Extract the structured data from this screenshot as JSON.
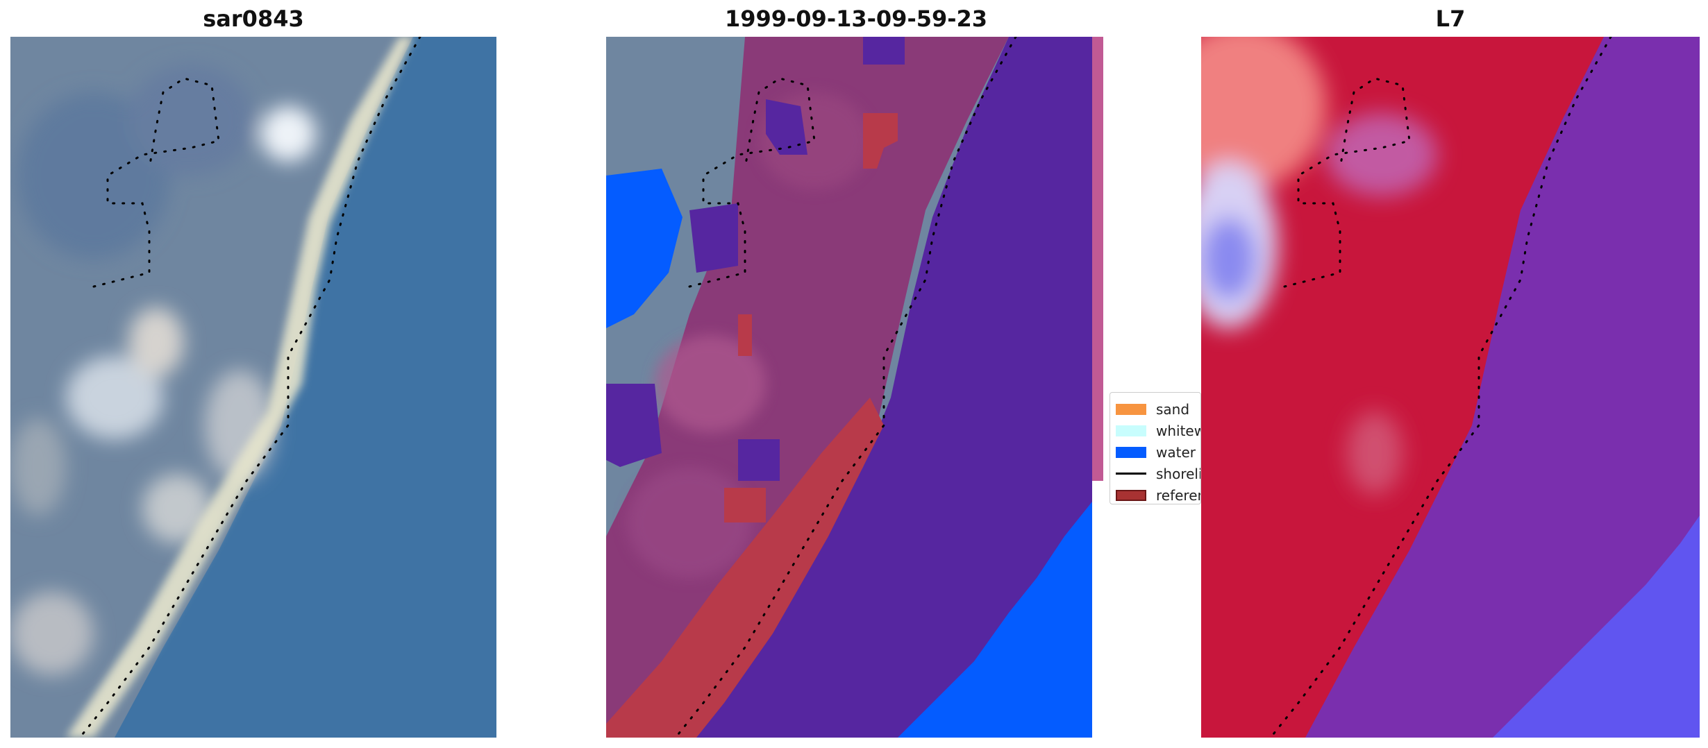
{
  "panels": [
    {
      "title": "sar0843"
    },
    {
      "title": "1999-09-13-09-59-23"
    },
    {
      "title": "L7"
    }
  ],
  "legend": {
    "items": [
      {
        "label": "sand",
        "color": "#f79440",
        "kind": "patch"
      },
      {
        "label": "whitewater",
        "color": "#c8fdfd",
        "kind": "patch"
      },
      {
        "label": "water",
        "color": "#045cff",
        "kind": "patch"
      },
      {
        "label": "shoreline",
        "color": "#000000",
        "kind": "line"
      },
      {
        "label": "reference",
        "color": "#a83232",
        "kind": "patch"
      }
    ]
  },
  "colors": {
    "sea_true_color": "#3f73a4",
    "land_true_color": "#6f86a0",
    "sand_true_color": "#e6e4cc",
    "classified_land": "#8a3a78",
    "classified_water_overlay": "#5626a0",
    "classified_water": "#045cff",
    "classified_reference": "#b83a4a",
    "index_land": "#c8163c",
    "index_sea": "#7a2fae"
  }
}
